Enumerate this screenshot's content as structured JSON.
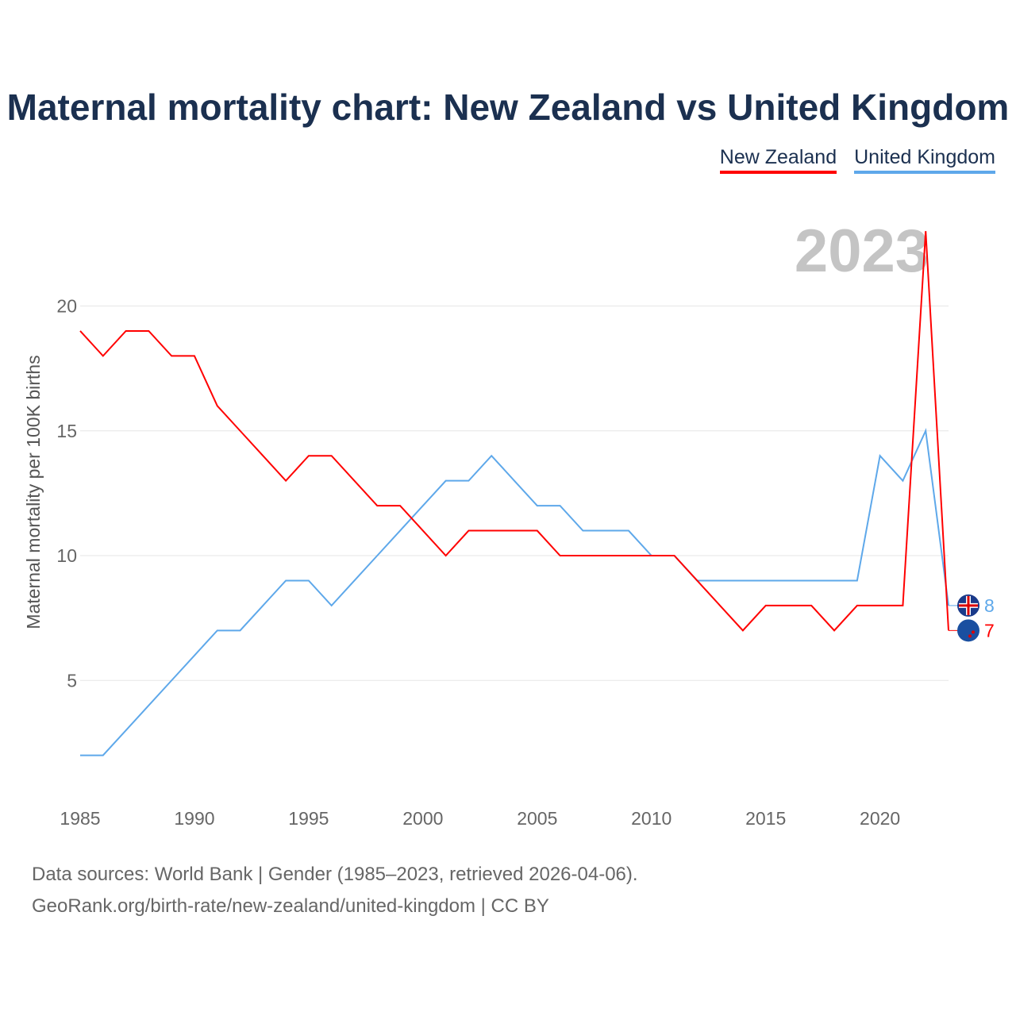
{
  "title": "Maternal mortality chart: New Zealand vs United Kingdom",
  "footer": {
    "line1": "Data sources: World Bank | Gender (1985–2023, retrieved 2026-04-06).",
    "line2": "GeoRank.org/birth-rate/new-zealand/united-kingdom | CC BY"
  },
  "chart_data": {
    "type": "line",
    "title": "Maternal mortality chart: New Zealand vs United Kingdom",
    "xlabel": "",
    "ylabel": "Maternal mortality per 100K births",
    "year_label": "2023",
    "x": [
      1985,
      1986,
      1987,
      1988,
      1989,
      1990,
      1991,
      1992,
      1993,
      1994,
      1995,
      1996,
      1997,
      1998,
      1999,
      2000,
      2001,
      2002,
      2003,
      2004,
      2005,
      2006,
      2007,
      2008,
      2009,
      2010,
      2011,
      2012,
      2013,
      2014,
      2015,
      2016,
      2017,
      2018,
      2019,
      2020,
      2021,
      2022,
      2023
    ],
    "xlim": [
      1985,
      2023
    ],
    "ylim": [
      0.8,
      23.5
    ],
    "xticks": [
      1985,
      1990,
      1995,
      2000,
      2005,
      2010,
      2015,
      2020
    ],
    "yticks": [
      5,
      10,
      15,
      20
    ],
    "grid": true,
    "legend_position": "top-right",
    "series": [
      {
        "name": "New Zealand",
        "color": "#ff0000",
        "end_label": "7",
        "values": [
          19,
          18,
          19,
          19,
          18,
          18,
          16,
          15,
          14,
          13,
          14,
          14,
          13,
          12,
          12,
          11,
          10,
          11,
          11,
          11,
          11,
          10,
          10,
          10,
          10,
          10,
          10,
          9,
          8,
          7,
          8,
          8,
          8,
          7,
          8,
          8,
          8,
          23,
          7
        ]
      },
      {
        "name": "United Kingdom",
        "color": "#5ea8ea",
        "end_label": "8",
        "values": [
          2,
          2,
          3,
          4,
          5,
          6,
          7,
          7,
          8,
          9,
          9,
          8,
          9,
          10,
          11,
          12,
          13,
          13,
          14,
          13,
          12,
          12,
          11,
          11,
          11,
          10,
          10,
          9,
          9,
          9,
          9,
          9,
          9,
          9,
          9,
          14,
          13,
          15,
          8
        ]
      }
    ]
  }
}
